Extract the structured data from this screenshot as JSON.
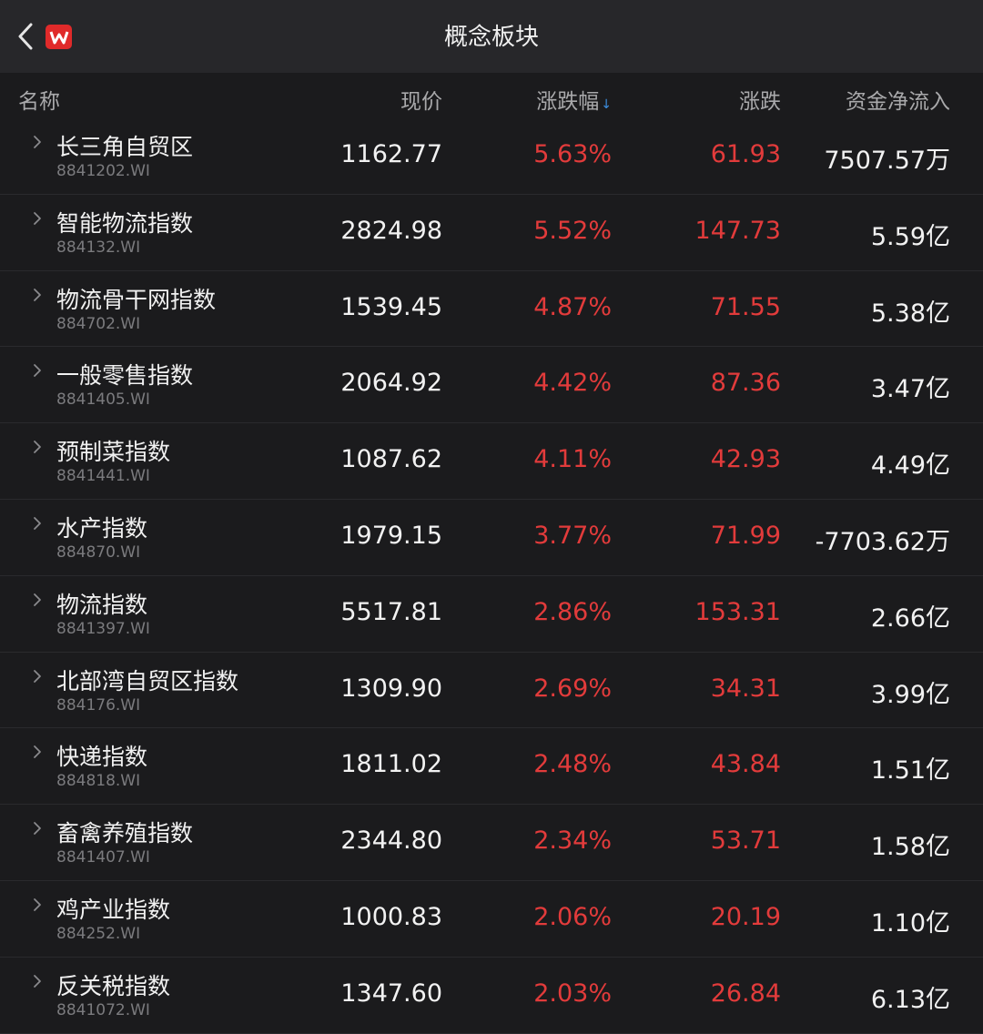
{
  "header": {
    "title": "概念板块",
    "logo_letter": "W",
    "accent": "#e02a2a"
  },
  "columns": {
    "name": "名称",
    "price": "现价",
    "pct": "涨跌幅",
    "sort_indicator": "↓",
    "change": "涨跌",
    "net_flow": "资金净流入"
  },
  "colors": {
    "up": "#e23b3b",
    "sort": "#3d8fe0"
  },
  "rows": [
    {
      "name": "长三角自贸区",
      "code": "8841202.WI",
      "price": "1162.77",
      "pct": "5.63%",
      "change": "61.93",
      "flow": "7507.57万"
    },
    {
      "name": "智能物流指数",
      "code": "884132.WI",
      "price": "2824.98",
      "pct": "5.52%",
      "change": "147.73",
      "flow": "5.59亿"
    },
    {
      "name": "物流骨干网指数",
      "code": "884702.WI",
      "price": "1539.45",
      "pct": "4.87%",
      "change": "71.55",
      "flow": "5.38亿"
    },
    {
      "name": "一般零售指数",
      "code": "8841405.WI",
      "price": "2064.92",
      "pct": "4.42%",
      "change": "87.36",
      "flow": "3.47亿"
    },
    {
      "name": "预制菜指数",
      "code": "8841441.WI",
      "price": "1087.62",
      "pct": "4.11%",
      "change": "42.93",
      "flow": "4.49亿"
    },
    {
      "name": "水产指数",
      "code": "884870.WI",
      "price": "1979.15",
      "pct": "3.77%",
      "change": "71.99",
      "flow": "-7703.62万"
    },
    {
      "name": "物流指数",
      "code": "8841397.WI",
      "price": "5517.81",
      "pct": "2.86%",
      "change": "153.31",
      "flow": "2.66亿"
    },
    {
      "name": "北部湾自贸区指数",
      "code": "884176.WI",
      "price": "1309.90",
      "pct": "2.69%",
      "change": "34.31",
      "flow": "3.99亿"
    },
    {
      "name": "快递指数",
      "code": "884818.WI",
      "price": "1811.02",
      "pct": "2.48%",
      "change": "43.84",
      "flow": "1.51亿"
    },
    {
      "name": "畜禽养殖指数",
      "code": "8841407.WI",
      "price": "2344.80",
      "pct": "2.34%",
      "change": "53.71",
      "flow": "1.58亿"
    },
    {
      "name": "鸡产业指数",
      "code": "884252.WI",
      "price": "1000.83",
      "pct": "2.06%",
      "change": "20.19",
      "flow": "1.10亿"
    },
    {
      "name": "反关税指数",
      "code": "8841072.WI",
      "price": "1347.60",
      "pct": "2.03%",
      "change": "26.84",
      "flow": "6.13亿"
    }
  ]
}
